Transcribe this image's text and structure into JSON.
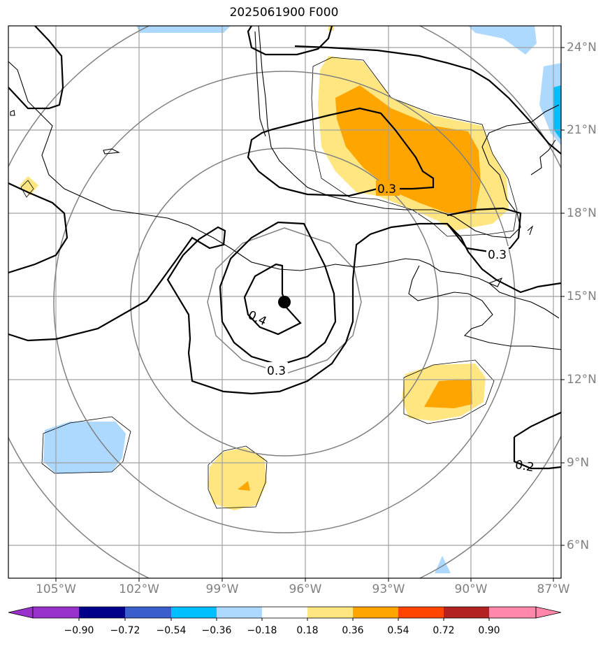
{
  "title": "2025061900 F000",
  "map": {
    "lat_labels": [
      "24°N",
      "21°N",
      "18°N",
      "15°N",
      "12°N",
      "9°N",
      "6°N"
    ],
    "lon_labels": [
      "105°W",
      "102°W",
      "99°W",
      "96°W",
      "93°W",
      "90°W",
      "87°W"
    ],
    "contour_labels": [
      "0.3",
      "0.3",
      "0.4",
      "0.3",
      "0.2"
    ],
    "center_marker": "storm-center-icon",
    "colors": {
      "light_yellow": "#ffe680",
      "orange": "#ffa500",
      "light_blue": "#add8ff",
      "cyan": "#00bfff",
      "grid": "#a0a0a0",
      "range_rings": "#808080"
    }
  },
  "colorbar": {
    "labels": [
      "−0.90",
      "−0.72",
      "−0.54",
      "−0.36",
      "−0.18",
      "0.18",
      "0.36",
      "0.54",
      "0.72",
      "0.90"
    ],
    "colors": [
      "#9932cc",
      "#00008b",
      "#3a5fcd",
      "#00bfff",
      "#add8ff",
      "#ffffff",
      "#ffe680",
      "#ffa500",
      "#ff4500",
      "#b22222",
      "#ff88aa"
    ]
  }
}
